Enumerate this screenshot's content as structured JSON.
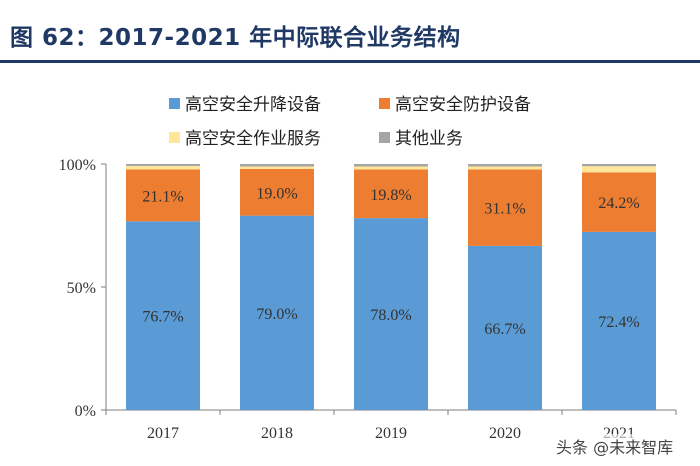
{
  "title": "图 62：2017-2021 年中际联合业务结构",
  "watermark": "头条 @未来智库",
  "colors": {
    "blue": "#5B9BD5",
    "orange": "#ED7D31",
    "yellow": "#FFE699",
    "gray": "#A5A5A5",
    "title": "#1F3864"
  },
  "chart_data": {
    "type": "bar",
    "stacked": true,
    "categories": [
      "2017",
      "2018",
      "2019",
      "2020",
      "2021"
    ],
    "series": [
      {
        "name": "高空安全升降设备",
        "values": [
          76.7,
          79.0,
          78.0,
          66.7,
          72.4
        ],
        "labels": [
          "76.7%",
          "79.0%",
          "78.0%",
          "66.7%",
          "72.4%"
        ]
      },
      {
        "name": "高空安全防护设备",
        "values": [
          21.1,
          19.0,
          19.8,
          31.1,
          24.2
        ],
        "labels": [
          "21.1%",
          "19.0%",
          "19.8%",
          "31.1%",
          "24.2%"
        ]
      },
      {
        "name": "高空安全作业服务",
        "values": [
          1.4,
          1.0,
          1.2,
          1.2,
          2.5
        ]
      },
      {
        "name": "其他业务",
        "values": [
          0.8,
          1.0,
          1.0,
          1.0,
          0.9
        ]
      }
    ],
    "y_ticks": [
      "0%",
      "50%",
      "100%"
    ],
    "ylim": [
      0,
      100
    ],
    "legend": "top",
    "grid": false
  }
}
